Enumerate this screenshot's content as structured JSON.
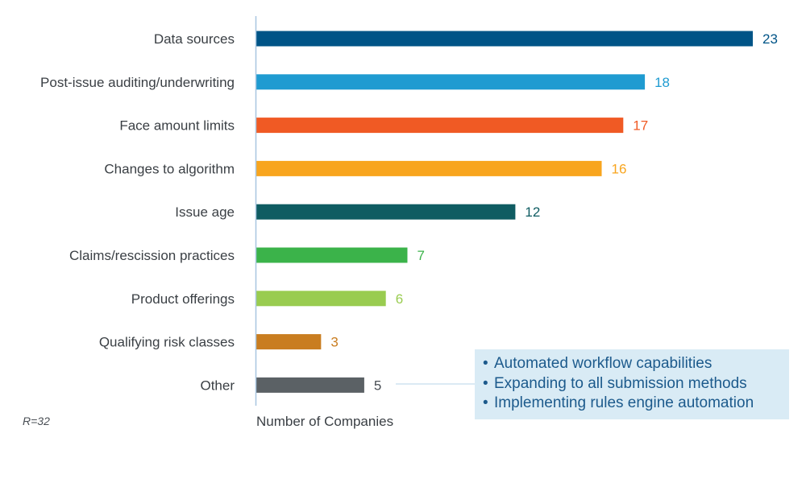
{
  "chart_data": {
    "type": "bar",
    "orientation": "horizontal",
    "categories": [
      "Data sources",
      "Post-issue auditing/underwriting",
      "Face amount limits",
      "Changes to algorithm",
      "Issue age",
      "Claims/rescission practices",
      "Product offerings",
      "Qualifying risk classes",
      "Other"
    ],
    "values": [
      23,
      18,
      17,
      16,
      12,
      7,
      6,
      3,
      5
    ],
    "colors": [
      "#005487",
      "#1f9bd1",
      "#f05a24",
      "#f8a51e",
      "#0f5c62",
      "#3bb34a",
      "#99cc50",
      "#c97d20",
      "#5b6165"
    ],
    "xlabel": "Number of Companies",
    "ylabel": "",
    "xlim": [
      0,
      23
    ],
    "grid": false,
    "legend": "none"
  },
  "note": "R=32",
  "callout": {
    "items": [
      "Automated workflow capabilities",
      "Expanding to all submission methods",
      "Implementing rules engine automation"
    ],
    "bullet": "•",
    "attached_to": "Other"
  }
}
